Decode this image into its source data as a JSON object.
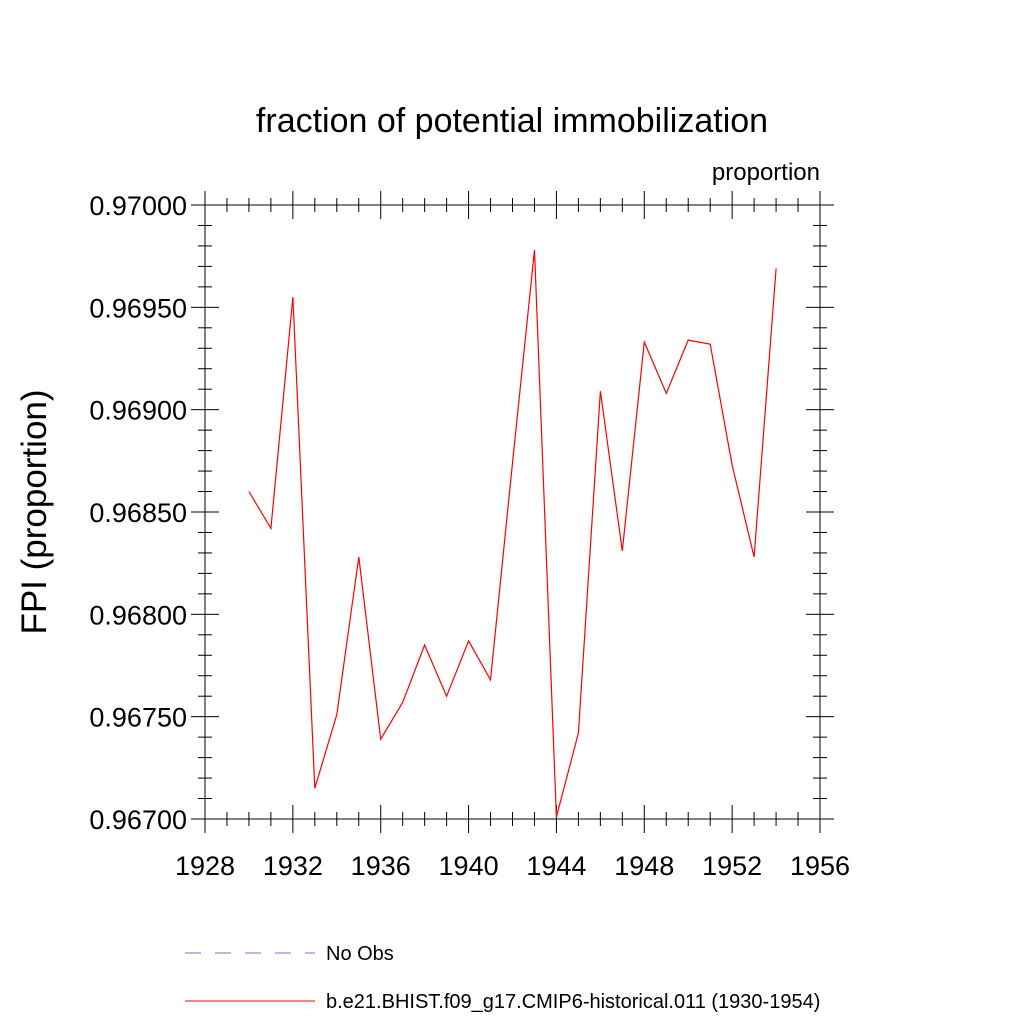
{
  "chart_data": {
    "type": "line",
    "title": "fraction of potential immobilization",
    "units_label": "proportion",
    "xlabel": "",
    "ylabel": "FPI  (proportion)",
    "xlim": [
      1928,
      1956
    ],
    "ylim": [
      0.967,
      0.97
    ],
    "x_ticks": [
      1928,
      1932,
      1936,
      1940,
      1944,
      1948,
      1952,
      1956
    ],
    "y_ticks": [
      0.967,
      0.9675,
      0.968,
      0.9685,
      0.969,
      0.9695,
      0.97
    ],
    "x_tick_labels": [
      "1928",
      "1932",
      "1936",
      "1940",
      "1944",
      "1948",
      "1952",
      "1956"
    ],
    "y_tick_labels": [
      "0.96700",
      "0.96750",
      "0.96800",
      "0.96850",
      "0.96900",
      "0.96950",
      "0.97000"
    ],
    "grid": false,
    "legend_position": "bottom",
    "series": [
      {
        "name": "b.e21.BHIST.f09_g17.CMIP6-historical.011 (1930-1954)",
        "color": "#ff0000",
        "style": "solid",
        "x": [
          1930,
          1931,
          1932,
          1933,
          1934,
          1935,
          1936,
          1937,
          1938,
          1939,
          1940,
          1941,
          1942,
          1943,
          1944,
          1945,
          1946,
          1947,
          1948,
          1949,
          1950,
          1951,
          1952,
          1953,
          1954
        ],
        "y": [
          0.9686,
          0.96842,
          0.96955,
          0.96715,
          0.96751,
          0.96828,
          0.96739,
          0.96757,
          0.96785,
          0.9676,
          0.96787,
          0.96768,
          0.96874,
          0.96978,
          0.96701,
          0.96742,
          0.96909,
          0.96831,
          0.96933,
          0.96908,
          0.96934,
          0.96932,
          0.96873,
          0.96828,
          0.96969
        ]
      }
    ],
    "legend": [
      {
        "label": "No Obs",
        "color": "#7b6fd0",
        "style": "dashed"
      },
      {
        "label": "b.e21.BHIST.f09_g17.CMIP6-historical.011 (1930-1954)",
        "color": "#ff0000",
        "style": "solid"
      }
    ]
  }
}
